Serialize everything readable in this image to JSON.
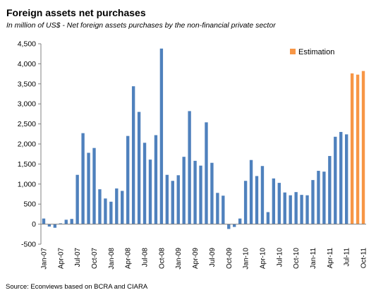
{
  "title": "Foreign assets net purchases",
  "subtitle": "In million  of US$ - Net foreign assets purchases by the non-financial private sector",
  "source": "Source: Econviews based on BCRA and CIARA",
  "colors": {
    "actual": "#4F81BD",
    "estimation": "#F79646",
    "grid": "#c0c0c0"
  },
  "chart_data": {
    "type": "bar",
    "title": "Foreign assets net purchases",
    "xlabel": "",
    "ylabel": "",
    "ylim": [
      -500,
      4500
    ],
    "yticks": [
      -500,
      0,
      500,
      1000,
      1500,
      2000,
      2500,
      3000,
      3500,
      4000,
      4500
    ],
    "ytick_labels": [
      "-500",
      "0",
      "500",
      "1,000",
      "1,500",
      "2,000",
      "2,500",
      "3,000",
      "3,500",
      "4,000",
      "4,500"
    ],
    "grid": false,
    "legend_position": "top-right",
    "categories": [
      "Jan-07",
      "Feb-07",
      "Mar-07",
      "Apr-07",
      "May-07",
      "Jun-07",
      "Jul-07",
      "Aug-07",
      "Sep-07",
      "Oct-07",
      "Nov-07",
      "Dec-07",
      "Jan-08",
      "Feb-08",
      "Mar-08",
      "Apr-08",
      "May-08",
      "Jun-08",
      "Jul-08",
      "Aug-08",
      "Sep-08",
      "Oct-08",
      "Nov-08",
      "Dec-08",
      "Jan-09",
      "Feb-09",
      "Mar-09",
      "Apr-09",
      "May-09",
      "Jun-09",
      "Jul-09",
      "Aug-09",
      "Sep-09",
      "Oct-09",
      "Nov-09",
      "Dec-09",
      "Jan-10",
      "Feb-10",
      "Mar-10",
      "Apr-10",
      "May-10",
      "Jun-10",
      "Jul-10",
      "Aug-10",
      "Sep-10",
      "Oct-10",
      "Nov-10",
      "Dec-10",
      "Jan-11",
      "Feb-11",
      "Mar-11",
      "Apr-11",
      "May-11",
      "Jun-11",
      "Jul-11",
      "Aug-11",
      "Sep-11",
      "Oct-11"
    ],
    "tick_labels": [
      "Jan-07",
      "Apr-07",
      "Jul-07",
      "Oct-07",
      "Jan-08",
      "Apr-08",
      "Jul-08",
      "Oct-08",
      "Jan-09",
      "Apr-09",
      "Jul-09",
      "Oct-09",
      "Jan-10",
      "Apr-10",
      "Jul-10",
      "Oct-10",
      "Jan-11",
      "Apr-11",
      "Jul-11",
      "Oct-11"
    ],
    "series": [
      {
        "name": "",
        "values": [
          140,
          -60,
          -90,
          20,
          110,
          130,
          1230,
          2270,
          1780,
          1900,
          870,
          640,
          560,
          890,
          830,
          2200,
          3440,
          2800,
          2030,
          1610,
          2220,
          4380,
          1230,
          1080,
          1220,
          1680,
          2820,
          1580,
          1460,
          2540,
          1530,
          780,
          710,
          -120,
          -70,
          140,
          1080,
          1600,
          1200,
          1450,
          300,
          1140,
          1030,
          790,
          720,
          800,
          730,
          720,
          1100,
          1330,
          1310,
          1700,
          2180,
          2300,
          2240,
          null,
          null,
          null
        ]
      },
      {
        "name": "Estimation",
        "values": [
          null,
          null,
          null,
          null,
          null,
          null,
          null,
          null,
          null,
          null,
          null,
          null,
          null,
          null,
          null,
          null,
          null,
          null,
          null,
          null,
          null,
          null,
          null,
          null,
          null,
          null,
          null,
          null,
          null,
          null,
          null,
          null,
          null,
          null,
          null,
          null,
          null,
          null,
          null,
          null,
          null,
          null,
          null,
          null,
          null,
          null,
          null,
          null,
          null,
          null,
          null,
          null,
          null,
          null,
          null,
          3760,
          3730,
          3820
        ]
      }
    ]
  }
}
